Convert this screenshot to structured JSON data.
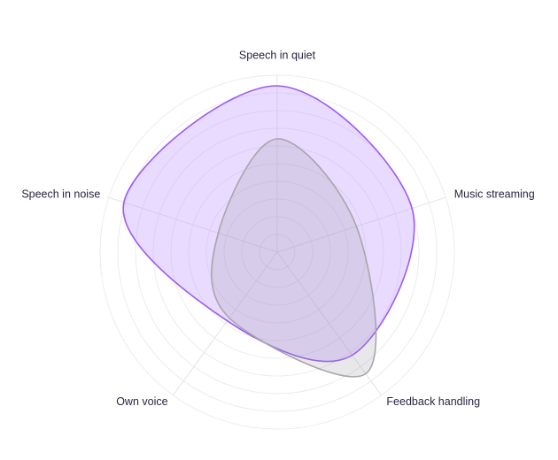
{
  "chart_data": {
    "type": "radar",
    "categories": [
      "Speech in quiet",
      "Music streaming",
      "Feedback handling",
      "Own voice",
      "Speech in noise"
    ],
    "rlim": [
      0,
      100
    ],
    "rticks": [
      10,
      20,
      30,
      40,
      50,
      60,
      70,
      80,
      90,
      100
    ],
    "grid": true,
    "series": [
      {
        "color": "#9b59f5",
        "fill": "rgba(196,160,255,0.38)",
        "values": [
          94,
          80,
          72,
          48,
          91
        ]
      },
      {
        "color": "#a8a6ad",
        "fill": "rgba(150,148,160,0.22)",
        "values": [
          64,
          47,
          85,
          46,
          35
        ]
      }
    ]
  }
}
